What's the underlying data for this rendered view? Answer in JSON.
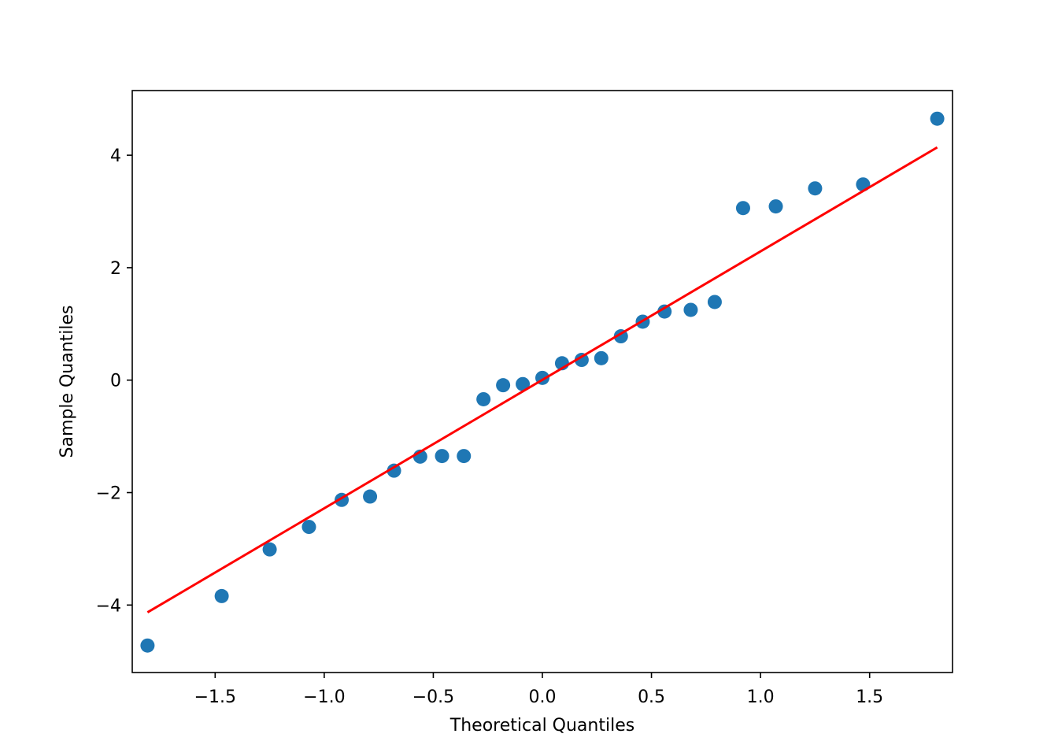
{
  "chart_data": {
    "type": "scatter",
    "title": "",
    "xlabel": "Theoretical Quantiles",
    "ylabel": "Sample Quantiles",
    "xlim": [
      -1.88,
      1.88
    ],
    "ylim": [
      -5.2,
      5.15
    ],
    "x_ticks": [
      -1.5,
      -1.0,
      -0.5,
      0.0,
      0.5,
      1.0,
      1.5
    ],
    "x_tick_labels": [
      "−1.5",
      "−1.0",
      "−0.5",
      "0.0",
      "0.5",
      "1.0",
      "1.5"
    ],
    "y_ticks": [
      -4,
      -2,
      0,
      2,
      4
    ],
    "y_tick_labels": [
      "−4",
      "−2",
      "0",
      "2",
      "4"
    ],
    "grid": false,
    "point_color": "#1f77b4",
    "line_color": "#ff0000",
    "points": [
      {
        "x": -1.81,
        "y": -4.72
      },
      {
        "x": -1.47,
        "y": -3.84
      },
      {
        "x": -1.25,
        "y": -3.01
      },
      {
        "x": -1.07,
        "y": -2.61
      },
      {
        "x": -0.92,
        "y": -2.13
      },
      {
        "x": -0.79,
        "y": -2.07
      },
      {
        "x": -0.68,
        "y": -1.61
      },
      {
        "x": -0.56,
        "y": -1.36
      },
      {
        "x": -0.46,
        "y": -1.35
      },
      {
        "x": -0.36,
        "y": -1.35
      },
      {
        "x": -0.27,
        "y": -0.34
      },
      {
        "x": -0.18,
        "y": -0.09
      },
      {
        "x": -0.09,
        "y": -0.07
      },
      {
        "x": 0.0,
        "y": 0.04
      },
      {
        "x": 0.09,
        "y": 0.3
      },
      {
        "x": 0.18,
        "y": 0.36
      },
      {
        "x": 0.27,
        "y": 0.39
      },
      {
        "x": 0.36,
        "y": 0.78
      },
      {
        "x": 0.46,
        "y": 1.04
      },
      {
        "x": 0.56,
        "y": 1.22
      },
      {
        "x": 0.68,
        "y": 1.25
      },
      {
        "x": 0.79,
        "y": 1.39
      },
      {
        "x": 0.92,
        "y": 3.06
      },
      {
        "x": 1.07,
        "y": 3.09
      },
      {
        "x": 1.25,
        "y": 3.41
      },
      {
        "x": 1.47,
        "y": 3.48
      },
      {
        "x": 1.81,
        "y": 4.65
      }
    ],
    "reference_line": {
      "x": [
        -1.81,
        1.81
      ],
      "y": [
        -4.13,
        4.14
      ]
    }
  }
}
